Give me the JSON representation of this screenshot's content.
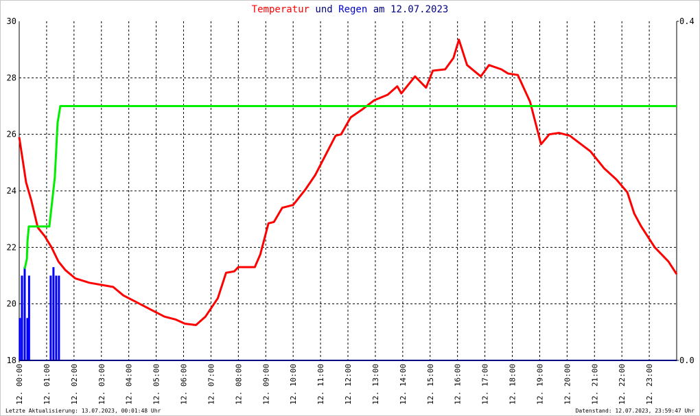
{
  "chart_data": {
    "type": "line",
    "title": [
      "Temperatur",
      "und",
      "Regen",
      "am 12.07.2023"
    ],
    "title_colors": [
      "#ff0000",
      "#000080",
      "#0000cc",
      "#000080"
    ],
    "footer_left": "Letzte Aktualisierung: 13.07.2023, 00:01:48 Uhr",
    "footer_right": "Datenstand: 12.07.2023, 23:59:47 Uhr",
    "xlim": [
      0,
      24
    ],
    "xticks": [
      {
        "value": 0,
        "label": "12. 00:00"
      },
      {
        "value": 1,
        "label": "12. 01:00"
      },
      {
        "value": 2,
        "label": "12. 02:00"
      },
      {
        "value": 3,
        "label": "12. 03:00"
      },
      {
        "value": 4,
        "label": "12. 04:00"
      },
      {
        "value": 5,
        "label": "12. 05:00"
      },
      {
        "value": 6,
        "label": "12. 06:00"
      },
      {
        "value": 7,
        "label": "12. 07:00"
      },
      {
        "value": 8,
        "label": "12. 08:00"
      },
      {
        "value": 9,
        "label": "12. 09:00"
      },
      {
        "value": 10,
        "label": "12. 10:00"
      },
      {
        "value": 11,
        "label": "12. 11:00"
      },
      {
        "value": 12,
        "label": "12. 12:00"
      },
      {
        "value": 13,
        "label": "12. 13:00"
      },
      {
        "value": 14,
        "label": "12. 14:00"
      },
      {
        "value": 15,
        "label": "12. 15:00"
      },
      {
        "value": 16,
        "label": "12. 16:00"
      },
      {
        "value": 17,
        "label": "12. 17:00"
      },
      {
        "value": 18,
        "label": "12. 18:00"
      },
      {
        "value": 19,
        "label": "12. 19:00"
      },
      {
        "value": 20,
        "label": "12. 20:00"
      },
      {
        "value": 21,
        "label": "12. 21:00"
      },
      {
        "value": 22,
        "label": "12. 22:00"
      },
      {
        "value": 23,
        "label": "12. 23:00"
      }
    ],
    "ylim": [
      18,
      30
    ],
    "yticks": [
      18,
      20,
      22,
      24,
      26,
      28,
      30
    ],
    "y2lim": [
      0,
      0.4
    ],
    "y2ticks": [
      {
        "value": 0,
        "label": "0.0"
      },
      0.4
    ],
    "grid": true,
    "series": [
      {
        "name": "Temperatur",
        "type": "line",
        "color": "#ff0000",
        "x": [
          0,
          0.25,
          0.43,
          0.68,
          0.93,
          1.18,
          1.43,
          1.68,
          2.05,
          2.55,
          3.43,
          3.8,
          4.3,
          4.8,
          5.3,
          5.7,
          6.05,
          6.45,
          6.8,
          7.25,
          7.55,
          7.85,
          8.0,
          8.6,
          8.8,
          9.1,
          9.3,
          9.6,
          10.0,
          10.45,
          10.8,
          11.2,
          11.55,
          11.75,
          12.1,
          12.55,
          12.95,
          13.45,
          13.8,
          13.95,
          14.45,
          14.85,
          15.1,
          15.55,
          15.85,
          16.05,
          16.35,
          16.85,
          17.15,
          17.6,
          17.85,
          18.2,
          18.65,
          19.05,
          19.35,
          19.7,
          20.1,
          20.85,
          21.35,
          21.8,
          22.2,
          22.45,
          22.7,
          23.2,
          23.7,
          24.0
        ],
        "values": [
          25.9,
          24.3,
          23.7,
          22.7,
          22.4,
          22.0,
          21.5,
          21.2,
          20.9,
          20.75,
          20.6,
          20.3,
          20.05,
          19.8,
          19.55,
          19.45,
          19.3,
          19.25,
          19.55,
          20.2,
          21.1,
          21.15,
          21.3,
          21.3,
          21.75,
          22.85,
          22.9,
          23.4,
          23.5,
          24.05,
          24.55,
          25.3,
          25.95,
          26.0,
          26.6,
          26.9,
          27.2,
          27.4,
          27.7,
          27.45,
          28.05,
          27.65,
          28.25,
          28.3,
          28.7,
          29.35,
          28.45,
          28.05,
          28.45,
          28.3,
          28.15,
          28.1,
          27.15,
          25.65,
          26.0,
          26.05,
          25.95,
          25.4,
          24.8,
          24.4,
          23.95,
          23.2,
          22.75,
          22.0,
          21.5,
          21.05
        ]
      },
      {
        "name": "Regen",
        "type": "bar",
        "axis": "y2",
        "color": "#0000ff",
        "x": [
          0.02,
          0.1,
          0.2,
          0.3,
          0.36,
          1.15,
          1.25,
          1.35,
          1.45
        ],
        "values": [
          0.05,
          0.1,
          0.11,
          0.05,
          0.1,
          0.1,
          0.11,
          0.1,
          0.1
        ]
      },
      {
        "type": "line",
        "axis": "y2",
        "color": "#00ee00",
        "x": [
          0.2,
          0.28,
          0.3,
          0.35,
          1.1,
          1.3,
          1.4,
          1.5,
          24
        ],
        "values": [
          0.108,
          0.12,
          0.14,
          0.158,
          0.158,
          0.216,
          0.28,
          0.3,
          0.3
        ]
      }
    ]
  }
}
